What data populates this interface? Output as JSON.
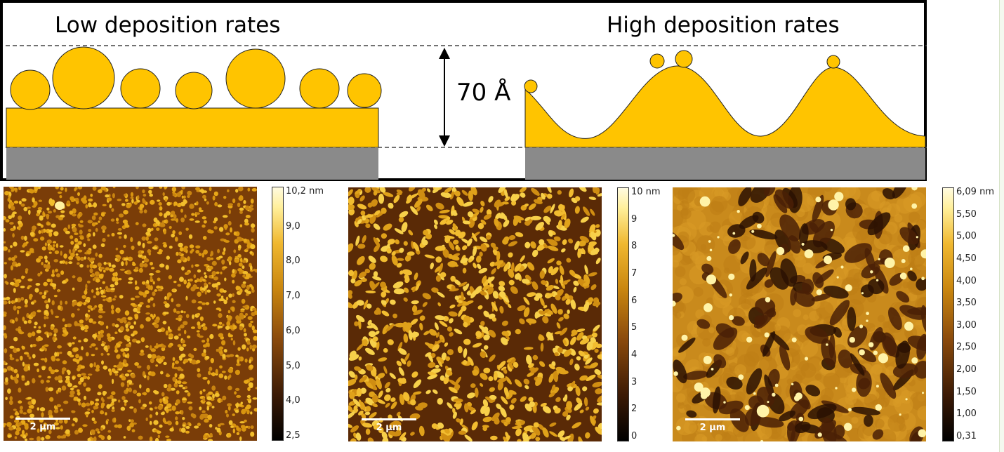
{
  "schematic": {
    "low_rate_title": "Low deposition rates",
    "high_rate_title": "High deposition rates",
    "thickness_label": "70 Å"
  },
  "afm_images": [
    {
      "id": "low-rate",
      "scale_bar": "2 µm",
      "colorbar_labels": [
        "10,2 nm",
        "9,0",
        "8,0",
        "7,0",
        "6,0",
        "5,0",
        "4,0",
        "2,5"
      ]
    },
    {
      "id": "mid-rate",
      "scale_bar": "2 µm",
      "colorbar_labels": [
        "10 nm",
        "9",
        "8",
        "7",
        "6",
        "5",
        "4",
        "3",
        "2",
        "0"
      ]
    },
    {
      "id": "high-rate",
      "scale_bar": "2 µm",
      "colorbar_labels": [
        "6,09 nm",
        "5,50",
        "5,00",
        "4,50",
        "4,00",
        "3,50",
        "3,00",
        "2,50",
        "2,00",
        "1,50",
        "1,00",
        "0,31"
      ]
    }
  ],
  "colors": {
    "gold": "#ffc400",
    "substrate": "#8a8a8a",
    "afm_dark": "#3b1a05",
    "afm_bright": "#ffef9a"
  }
}
